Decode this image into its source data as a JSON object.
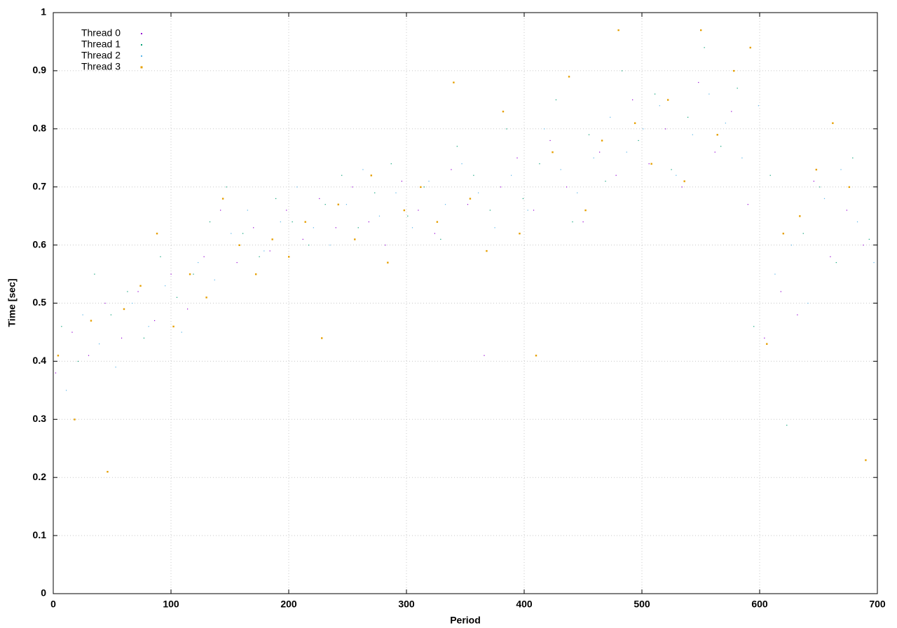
{
  "chart_data": {
    "type": "scatter",
    "x_label": "Period",
    "y_label": "Time [sec]",
    "xlim": [
      0,
      700
    ],
    "ylim": [
      0,
      1
    ],
    "xticks": [
      0,
      100,
      200,
      300,
      400,
      500,
      600,
      700
    ],
    "yticks": [
      0,
      0.1,
      0.2,
      0.3,
      0.4,
      0.5,
      0.6,
      0.7,
      0.8,
      0.9,
      1
    ],
    "grid": true,
    "legend": "upper left",
    "series": [
      {
        "name": "Thread 0",
        "color": "#9400d3",
        "marker_size": 1,
        "x": [
          2,
          16,
          30,
          44,
          58,
          72,
          86,
          100,
          114,
          128,
          142,
          156,
          170,
          184,
          198,
          212,
          226,
          240,
          254,
          268,
          282,
          296,
          310,
          324,
          338,
          352,
          366,
          380,
          394,
          408,
          422,
          436,
          450,
          464,
          478,
          492,
          506,
          520,
          534,
          548,
          562,
          576,
          590,
          604,
          618,
          632,
          646,
          660,
          674,
          688
        ],
        "values": [
          0.38,
          0.45,
          0.41,
          0.5,
          0.44,
          0.52,
          0.47,
          0.55,
          0.49,
          0.58,
          0.66,
          0.57,
          0.63,
          0.59,
          0.66,
          0.61,
          0.68,
          0.63,
          0.7,
          0.64,
          0.6,
          0.71,
          0.66,
          0.62,
          0.73,
          0.67,
          0.41,
          0.7,
          0.75,
          0.66,
          0.78,
          0.7,
          0.64,
          0.76,
          0.72,
          0.85,
          0.74,
          0.8,
          0.7,
          0.88,
          0.76,
          0.83,
          0.67,
          0.44,
          0.52,
          0.48,
          0.71,
          0.58,
          0.66,
          0.6
        ]
      },
      {
        "name": "Thread 1",
        "color": "#009e73",
        "marker_size": 1,
        "x": [
          7,
          21,
          35,
          49,
          63,
          77,
          91,
          105,
          119,
          133,
          147,
          161,
          175,
          189,
          203,
          217,
          231,
          245,
          259,
          273,
          287,
          301,
          315,
          329,
          343,
          357,
          371,
          385,
          399,
          413,
          427,
          441,
          455,
          469,
          483,
          497,
          511,
          525,
          539,
          553,
          567,
          581,
          595,
          609,
          623,
          637,
          651,
          665,
          679,
          693
        ],
        "values": [
          0.46,
          0.4,
          0.55,
          0.48,
          0.52,
          0.44,
          0.58,
          0.51,
          0.55,
          0.64,
          0.7,
          0.62,
          0.58,
          0.68,
          0.64,
          0.6,
          0.67,
          0.72,
          0.63,
          0.69,
          0.74,
          0.65,
          0.7,
          0.61,
          0.77,
          0.72,
          0.66,
          0.8,
          0.68,
          0.74,
          0.85,
          0.64,
          0.79,
          0.71,
          0.9,
          0.78,
          0.86,
          0.73,
          0.82,
          0.94,
          0.77,
          0.87,
          0.46,
          0.72,
          0.29,
          0.62,
          0.7,
          0.57,
          0.75,
          0.61
        ]
      },
      {
        "name": "Thread 2",
        "color": "#56b4e9",
        "marker_size": 1,
        "x": [
          11,
          25,
          39,
          53,
          67,
          81,
          95,
          109,
          123,
          137,
          151,
          165,
          179,
          193,
          207,
          221,
          235,
          249,
          263,
          277,
          291,
          305,
          319,
          333,
          347,
          361,
          375,
          389,
          403,
          417,
          431,
          445,
          459,
          473,
          487,
          501,
          515,
          529,
          543,
          557,
          571,
          585,
          599,
          613,
          627,
          641,
          655,
          669,
          683,
          697
        ],
        "values": [
          0.35,
          0.48,
          0.43,
          0.39,
          0.5,
          0.46,
          0.53,
          0.45,
          0.57,
          0.54,
          0.62,
          0.66,
          0.59,
          0.64,
          0.7,
          0.63,
          0.6,
          0.67,
          0.73,
          0.65,
          0.69,
          0.63,
          0.71,
          0.67,
          0.74,
          0.69,
          0.63,
          0.72,
          0.66,
          0.8,
          0.73,
          0.69,
          0.75,
          0.82,
          0.76,
          0.8,
          0.84,
          0.72,
          0.79,
          0.86,
          0.81,
          0.75,
          0.84,
          0.55,
          0.6,
          0.5,
          0.68,
          0.73,
          0.64,
          0.57
        ]
      },
      {
        "name": "Thread 3",
        "color": "#e69f00",
        "marker_size": 2,
        "x": [
          4,
          18,
          32,
          46,
          60,
          74,
          88,
          102,
          116,
          130,
          144,
          158,
          172,
          186,
          200,
          214,
          228,
          242,
          256,
          270,
          284,
          298,
          312,
          326,
          340,
          354,
          368,
          382,
          396,
          410,
          424,
          438,
          452,
          466,
          480,
          494,
          508,
          522,
          536,
          550,
          564,
          578,
          592,
          606,
          620,
          634,
          648,
          662,
          676,
          690
        ],
        "values": [
          0.41,
          0.3,
          0.47,
          0.21,
          0.49,
          0.53,
          0.62,
          0.46,
          0.55,
          0.51,
          0.68,
          0.6,
          0.55,
          0.61,
          0.58,
          0.64,
          0.44,
          0.67,
          0.61,
          0.72,
          0.57,
          0.66,
          0.7,
          0.64,
          0.88,
          0.68,
          0.59,
          0.83,
          0.62,
          0.41,
          0.76,
          0.89,
          0.66,
          0.78,
          0.97,
          0.81,
          0.74,
          0.85,
          0.71,
          0.97,
          0.79,
          0.9,
          0.94,
          0.43,
          0.62,
          0.65,
          0.73,
          0.81,
          0.7,
          0.23
        ]
      }
    ]
  }
}
